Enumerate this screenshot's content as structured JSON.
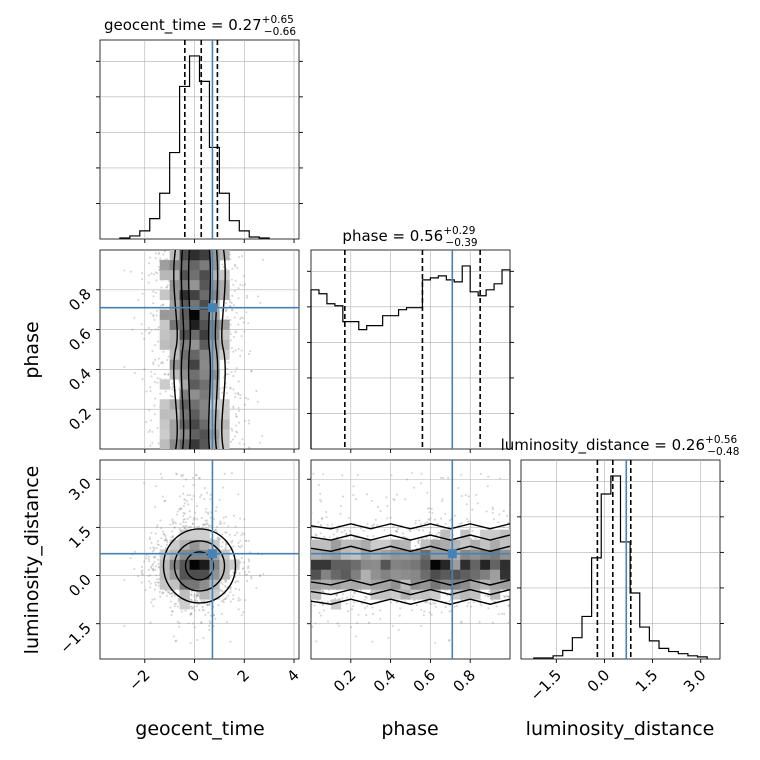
{
  "chart_data": {
    "type": "corner",
    "truth_color": "#4682b4",
    "parameters": [
      {
        "name": "geocent_time",
        "label": "geocent_time",
        "title": "geocent_time = 0.27",
        "sup": "+0.65",
        "sub": "−0.66",
        "range": [
          -3.8,
          4.2
        ],
        "truth": 0.72,
        "quantiles": [
          -0.39,
          0.27,
          0.92
        ],
        "ticks": [
          {
            "v": -2,
            "t": "−2"
          },
          {
            "v": 0,
            "t": "0"
          },
          {
            "v": 2,
            "t": "2"
          },
          {
            "v": 4,
            "t": "4"
          }
        ]
      },
      {
        "name": "phase",
        "label": "phase",
        "title": "phase = 0.56",
        "sup": "+0.29",
        "sub": "−0.39",
        "range": [
          0.0,
          1.0
        ],
        "truth": 0.71,
        "quantiles": [
          0.17,
          0.56,
          0.85
        ],
        "ticks": [
          {
            "v": 0.2,
            "t": "0.2"
          },
          {
            "v": 0.4,
            "t": "0.4"
          },
          {
            "v": 0.6,
            "t": "0.6"
          },
          {
            "v": 0.8,
            "t": "0.8"
          }
        ]
      },
      {
        "name": "luminosity_distance",
        "label": "luminosity_distance",
        "title": "luminosity_distance = 0.26",
        "sup": "+0.56",
        "sub": "−0.48",
        "range": [
          -2.6,
          3.6
        ],
        "truth": 0.68,
        "quantiles": [
          -0.22,
          0.26,
          0.82
        ],
        "ticks": [
          {
            "v": -1.5,
            "t": "−1.5"
          },
          {
            "v": 0.0,
            "t": "0.0"
          },
          {
            "v": 1.5,
            "t": "1.5"
          },
          {
            "v": 3.0,
            "t": "3.0"
          }
        ]
      }
    ],
    "histograms": [
      {
        "param": "geocent_time",
        "edges": [
          -3.0,
          -2.6,
          -2.2,
          -1.8,
          -1.4,
          -1.0,
          -0.6,
          -0.2,
          0.2,
          0.6,
          1.0,
          1.4,
          1.8,
          2.2,
          2.6,
          3.0
        ],
        "counts": [
          1,
          3,
          8,
          20,
          45,
          85,
          150,
          180,
          155,
          90,
          45,
          18,
          8,
          2,
          1
        ]
      },
      {
        "param": "phase",
        "edges": [
          0.0,
          0.04,
          0.08,
          0.12,
          0.16,
          0.2,
          0.24,
          0.28,
          0.32,
          0.36,
          0.4,
          0.44,
          0.48,
          0.52,
          0.56,
          0.6,
          0.64,
          0.68,
          0.72,
          0.76,
          0.8,
          0.84,
          0.88,
          0.92,
          0.96,
          1.0
        ],
        "counts": [
          80,
          78,
          73,
          72,
          64,
          64,
          60,
          62,
          62,
          67,
          67,
          70,
          71,
          71,
          85,
          86,
          87,
          85,
          84,
          92,
          79,
          77,
          80,
          83,
          90
        ]
      },
      {
        "param": "luminosity_distance",
        "edges": [
          -2.2,
          -1.9,
          -1.6,
          -1.3,
          -1.0,
          -0.7,
          -0.4,
          -0.1,
          0.2,
          0.5,
          0.8,
          1.1,
          1.4,
          1.7,
          2.0,
          2.3,
          2.6,
          2.9,
          3.2
        ],
        "counts": [
          1,
          1,
          3,
          8,
          20,
          40,
          95,
          155,
          172,
          110,
          62,
          30,
          17,
          10,
          7,
          5,
          3,
          2
        ]
      }
    ]
  }
}
